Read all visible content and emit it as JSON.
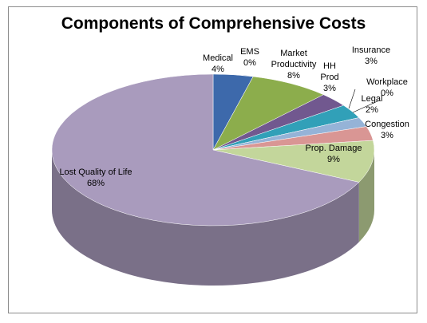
{
  "chart_data": {
    "type": "pie",
    "title": "Components of Comprehensive Costs",
    "categories": [
      "Medical",
      "EMS",
      "Market Productivity",
      "HH Prod",
      "Insurance",
      "Workplace",
      "Legal",
      "Congestion",
      "Prop. Damage",
      "Lost Quality of Life"
    ],
    "values": [
      4,
      0,
      8,
      3,
      3,
      0,
      2,
      3,
      9,
      68
    ],
    "value_labels": [
      "4%",
      "0%",
      "8%",
      "3%",
      "3%",
      "0%",
      "2%",
      "3%",
      "9%",
      "68%"
    ],
    "colors": [
      "#3d69ab",
      "#c0504d",
      "#8cad4c",
      "#71588f",
      "#31a0b8",
      "#f79646",
      "#95b3d7",
      "#d99694",
      "#c3d69b",
      "#a99bbd"
    ]
  }
}
